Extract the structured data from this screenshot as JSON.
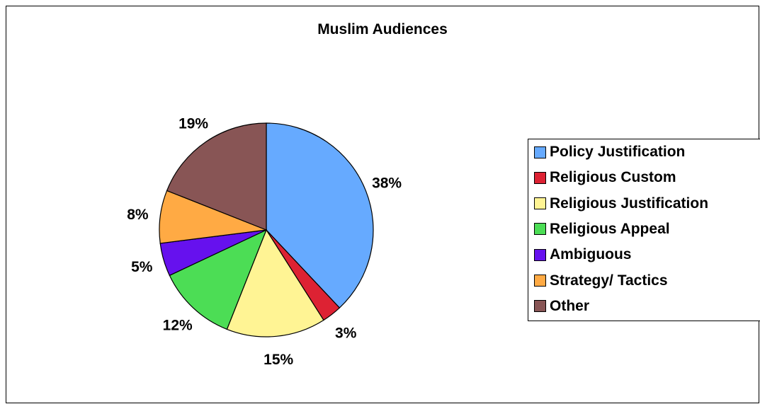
{
  "chart_data": {
    "type": "pie",
    "title": "Muslim Audiences",
    "categories": [
      "Policy Justification",
      "Religious Custom",
      "Religious Justification",
      "Religious Appeal",
      "Ambiguous",
      "Strategy/  Tactics",
      "Other"
    ],
    "values": [
      38,
      3,
      15,
      12,
      5,
      8,
      19
    ],
    "value_labels": [
      "38%",
      "3%",
      "15%",
      "12%",
      "5%",
      "8%",
      "19%"
    ],
    "colors": [
      "#66AAFF",
      "#DD2233",
      "#FFF494",
      "#4CDD55",
      "#6611EE",
      "#FFAA44",
      "#885555"
    ],
    "legend_position": "right",
    "start_angle": "12 o'clock",
    "direction": "clockwise"
  }
}
